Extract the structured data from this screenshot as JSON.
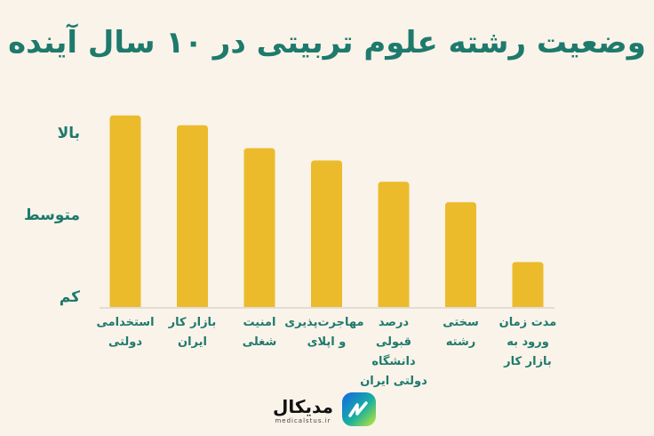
{
  "chart_data": {
    "type": "bar",
    "title": "وضعیت رشته علوم تربیتی در ۱۰ سال آینده",
    "xlabel": "",
    "ylabel": "",
    "y_tick_labels": [
      "کم",
      "متوسط",
      "بالا"
    ],
    "y_tick_values": [
      1,
      2,
      3
    ],
    "ylim": [
      0.88,
      3.3
    ],
    "grid": false,
    "categories": [
      "استخدامی\nدولتی",
      "بازار کار\nایران",
      "امنیت\nشغلی",
      "مهاجرت‌پذیری\nو اپلای",
      "درصد\nقبولی\nدانشگاه\nدولتی ایران",
      "سختی\nرشته",
      "مدت زمان\nورود به\nبازار کار"
    ],
    "values": [
      3.22,
      3.1,
      2.82,
      2.67,
      2.41,
      2.16,
      1.43
    ],
    "colors": {
      "bar": "#ebbb2c",
      "text": "#1e7a6c",
      "background": "#faf3ea",
      "axis": "#e2dcd2"
    }
  },
  "brand": {
    "name": "مدیکال",
    "site": "medicalstus.ir",
    "logo_icon": "medical-logo-icon"
  }
}
